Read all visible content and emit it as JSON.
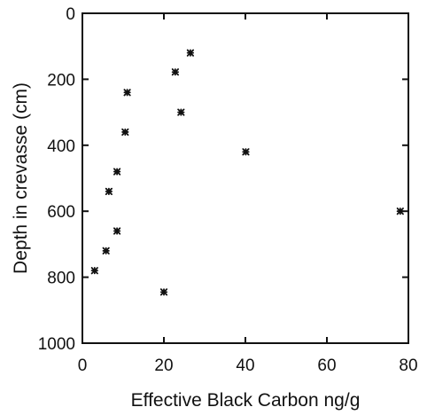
{
  "chart_data": {
    "type": "scatter",
    "xlabel": "Effective Black Carbon ng/g",
    "ylabel": "Depth in crevasse (cm)",
    "xlim": [
      0,
      80
    ],
    "ylim": [
      0,
      1000
    ],
    "y_inverted": true,
    "grid": false,
    "x_ticks": [
      0,
      20,
      40,
      60,
      80
    ],
    "x_tick_labels": [
      "0",
      "20",
      "40",
      "60",
      "80"
    ],
    "y_ticks": [
      0,
      200,
      400,
      600,
      800,
      1000
    ],
    "y_tick_labels": [
      "0",
      "200",
      "400",
      "600",
      "800",
      "1000"
    ],
    "marker": "asterisk",
    "marker_color": "#111111",
    "points": [
      {
        "x": 26.5,
        "y": 120
      },
      {
        "x": 22.8,
        "y": 178
      },
      {
        "x": 11.0,
        "y": 240
      },
      {
        "x": 24.2,
        "y": 300
      },
      {
        "x": 10.5,
        "y": 360
      },
      {
        "x": 40.1,
        "y": 420
      },
      {
        "x": 8.5,
        "y": 480
      },
      {
        "x": 6.5,
        "y": 540
      },
      {
        "x": 78.0,
        "y": 600
      },
      {
        "x": 8.5,
        "y": 660
      },
      {
        "x": 5.8,
        "y": 720
      },
      {
        "x": 3.0,
        "y": 780
      },
      {
        "x": 20.0,
        "y": 845
      }
    ]
  }
}
